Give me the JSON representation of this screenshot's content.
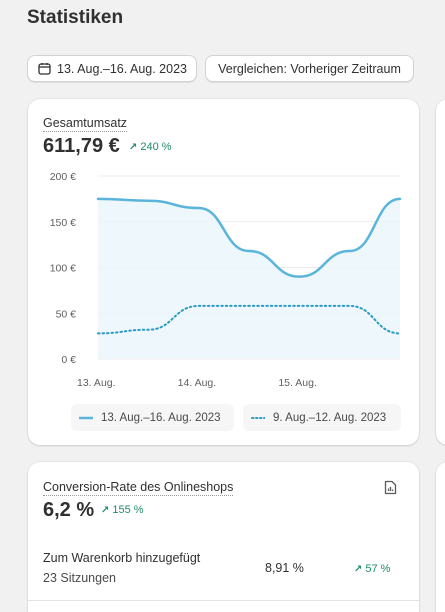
{
  "page": {
    "title": "Statistiken"
  },
  "toolbar": {
    "date_range": "13. Aug.–16. Aug. 2023",
    "compare_label": "Vergleichen: Vorheriger Zeitraum"
  },
  "sales_card": {
    "label": "Gesamtumsatz",
    "value": "611,79 €",
    "trend": "240 %",
    "legend": {
      "current": "13. Aug.–16. Aug. 2023",
      "previous": "9. Aug.–12. Aug. 2023"
    }
  },
  "conversion_card": {
    "label": "Conversion-Rate des Onlineshops",
    "value": "6,2 %",
    "trend": "155 %",
    "rows": [
      {
        "label": "Zum Warenkorb hinzugefügt",
        "sub": "23 Sitzungen",
        "value": "8,91 %",
        "trend": "57 %"
      }
    ]
  },
  "colors": {
    "current_series": "#5ab4dc",
    "previous_series": "#2a9bc4",
    "trend_positive": "#1f8b6a",
    "area_fill": "#eaf5fb"
  },
  "icons": [
    "calendar-icon",
    "trend-up-icon",
    "report-icon"
  ],
  "chart_data": {
    "type": "line",
    "x_tick_labels": [
      "13. Aug.",
      "14. Aug.",
      "15. Aug."
    ],
    "y_ticks": [
      "200 €",
      "150 €",
      "100 €",
      "50 €",
      "0 €"
    ],
    "ylim": [
      0,
      200
    ],
    "x": [
      0,
      0.5,
      1,
      1.5,
      2,
      2.5,
      3
    ],
    "series": [
      {
        "name": "13. Aug.–16. Aug. 2023",
        "style": "solid",
        "values": [
          175,
          173,
          165,
          118,
          90,
          118,
          175
        ]
      },
      {
        "name": "9. Aug.–12. Aug. 2023",
        "style": "dotted",
        "values": [
          28,
          32,
          58,
          58,
          58,
          58,
          28
        ]
      }
    ]
  }
}
